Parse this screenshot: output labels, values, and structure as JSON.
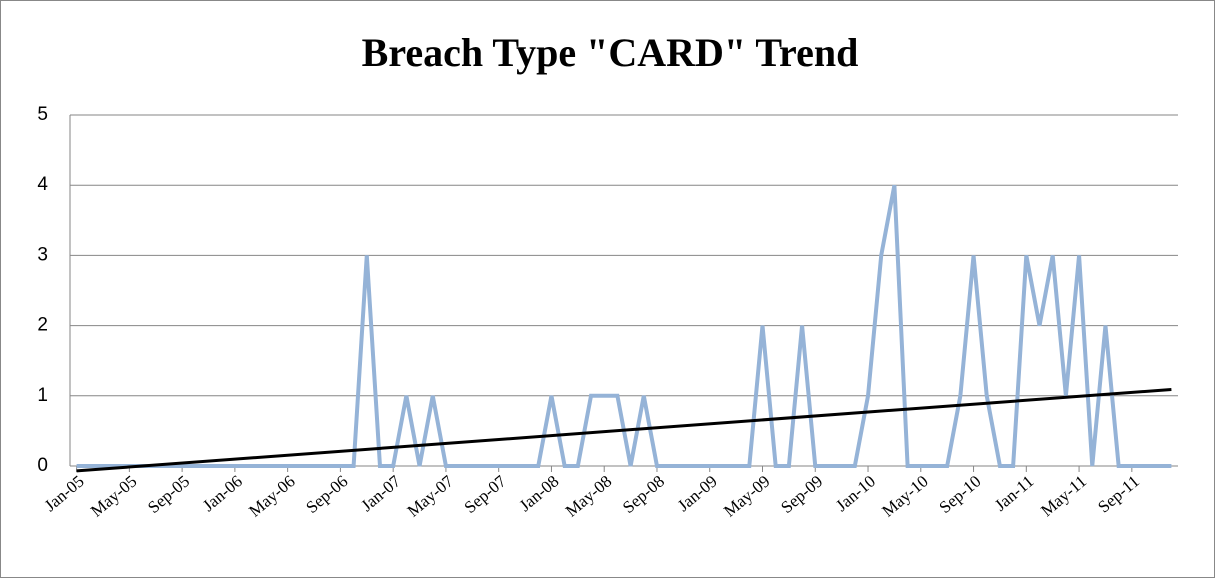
{
  "chart_data": {
    "type": "line",
    "title": "Breach Type \"CARD\" Trend",
    "categories": [
      "Jan-05",
      null,
      null,
      null,
      "May-05",
      null,
      null,
      null,
      "Sep-05",
      null,
      null,
      null,
      "Jan-06",
      null,
      null,
      null,
      "May-06",
      null,
      null,
      null,
      "Sep-06",
      null,
      null,
      null,
      "Jan-07",
      null,
      null,
      null,
      "May-07",
      null,
      null,
      null,
      "Sep-07",
      null,
      null,
      null,
      "Jan-08",
      null,
      null,
      null,
      "May-08",
      null,
      null,
      null,
      "Sep-08",
      null,
      null,
      null,
      "Jan-09",
      null,
      null,
      null,
      "May-09",
      null,
      null,
      null,
      "Sep-09",
      null,
      null,
      null,
      "Jan-10",
      null,
      null,
      null,
      "May-10",
      null,
      null,
      null,
      "Sep-10",
      null,
      null,
      null,
      "Jan-11",
      null,
      null,
      null,
      "May-11",
      null,
      null,
      null,
      "Sep-11",
      null,
      null,
      null
    ],
    "series": [
      {
        "color": "#95b3d7",
        "values": [
          0,
          0,
          0,
          0,
          0,
          0,
          0,
          0,
          0,
          0,
          0,
          0,
          0,
          0,
          0,
          0,
          0,
          0,
          0,
          0,
          0,
          0,
          3,
          0,
          0,
          1,
          0,
          1,
          0,
          0,
          0,
          0,
          0,
          0,
          0,
          0,
          1,
          0,
          0,
          1,
          1,
          1,
          0,
          1,
          0,
          0,
          0,
          0,
          0,
          0,
          0,
          0,
          2,
          0,
          0,
          2,
          0,
          0,
          0,
          0,
          1,
          3,
          4,
          0,
          0,
          0,
          0,
          1,
          3,
          1,
          0,
          0,
          3,
          2,
          3,
          1,
          3,
          0,
          2,
          0,
          0,
          0,
          0,
          0
        ]
      }
    ],
    "trendline": {
      "color": "#000000",
      "values": [
        -0.07,
        1.09
      ]
    },
    "ylim": [
      0,
      5
    ],
    "yticks": [
      0,
      1,
      2,
      3,
      4,
      5
    ],
    "grid": true
  }
}
